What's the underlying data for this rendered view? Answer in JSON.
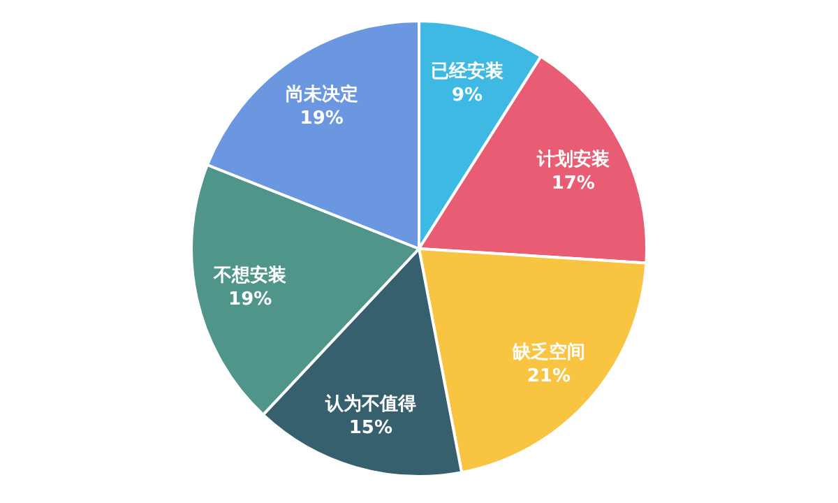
{
  "chart_data": {
    "type": "pie",
    "categories": [
      "已经安装",
      "计划安装",
      "缺乏空间",
      "认为不值得",
      "不想安装",
      "尚未决定"
    ],
    "values": [
      9,
      17,
      21,
      15,
      19,
      19
    ],
    "colors": [
      "#3db9e4",
      "#e85c74",
      "#f8c441",
      "#37606e",
      "#4f9589",
      "#6a97e0"
    ],
    "value_labels": [
      "9%",
      "17%",
      "21%",
      "15%",
      "19%",
      "19%"
    ]
  }
}
